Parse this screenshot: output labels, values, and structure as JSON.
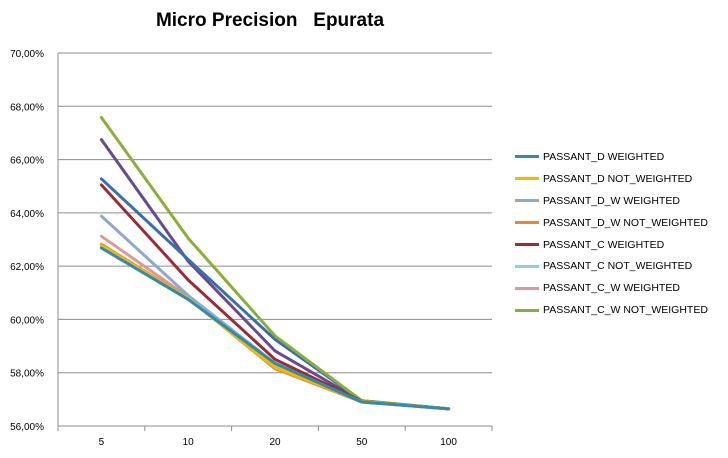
{
  "chart_data": {
    "type": "line",
    "title": "Micro Precision   Epurata",
    "xlabel": "",
    "ylabel": "",
    "categories": [
      "5",
      "10",
      "20",
      "50",
      "100"
    ],
    "ylim": [
      0.56,
      0.7
    ],
    "yticks": [
      "56,00%",
      "58,00%",
      "60,00%",
      "62,00%",
      "64,00%",
      "66,00%",
      "68,00%",
      "70,00%"
    ],
    "grid": true,
    "legend_position": "right",
    "series": [
      {
        "name": "PASSANT_D WEIGHTED",
        "color": "#2E8DAE",
        "values": [
          0.6268,
          0.6075,
          0.5835,
          0.569,
          0.5664
        ]
      },
      {
        "name": "PASSANT_D NOT_WEIGHTED",
        "color": "#F5B800",
        "values": [
          0.6278,
          0.6078,
          0.582,
          0.5692,
          0.5665
        ]
      },
      {
        "name": "PASSANT_D_W WEIGHTED",
        "color": "#8FA8D0",
        "values": [
          0.6388,
          0.609,
          0.5835,
          0.569,
          0.5665
        ]
      },
      {
        "name": "PASSANT_D_W NOT_WEIGHTED",
        "color": "#E08A3A",
        "values": [
          0.6282,
          0.608,
          0.5815,
          0.569,
          0.5664
        ]
      },
      {
        "name": "PASSANT_C WEIGHTED",
        "color": "#9B2C36",
        "values": [
          0.6505,
          0.6148,
          0.585,
          0.5693,
          0.5665
        ]
      },
      {
        "name": "PASSANT_C NOT_WEIGHTED",
        "color": "#8FD0E0",
        "values": [
          0.6272,
          0.608,
          0.583,
          0.569,
          0.5664
        ]
      },
      {
        "name": "PASSANT_C_W WEIGHTED",
        "color": "#D89A9E",
        "values": [
          0.6312,
          0.6085,
          0.5835,
          0.569,
          0.5664
        ]
      },
      {
        "name": "PASSANT_C_W NOT_WEIGHTED",
        "color": "#8AAE3A",
        "values": [
          0.6758,
          0.6305,
          0.5938,
          0.5695,
          0.5665
        ]
      },
      {
        "name": "",
        "color": "#3A6FAE",
        "values": [
          0.6528,
          0.6225,
          0.5925,
          0.5695,
          0.5665
        ]
      },
      {
        "name": "",
        "color": "#6A4A8E",
        "values": [
          0.6675,
          0.6218,
          0.5882,
          0.5693,
          0.5665
        ]
      }
    ]
  }
}
